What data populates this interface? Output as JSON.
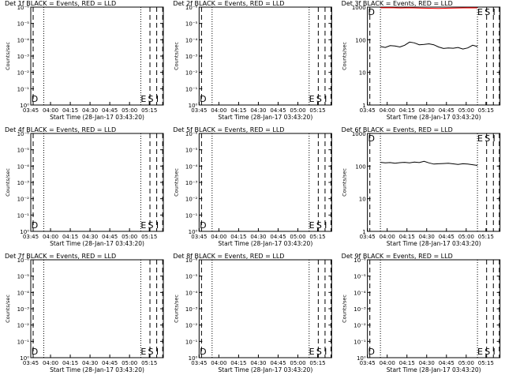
{
  "colors": {
    "events": "#000000",
    "lld": "#ff0000",
    "background": "#ffffff"
  },
  "chart_data": [
    {
      "type": "line",
      "title": "Det 1f BLACK = Events, RED = LLD",
      "xlabel": "Start Time (28-Jan-17 03:43:20)",
      "ylabel": "Counts/sec",
      "xticks": [
        "03:45",
        "04:00",
        "04:15",
        "04:30",
        "04:45",
        "05:00",
        "05:15"
      ],
      "yscale": "log",
      "yticks": [
        "10⁰",
        "10⁻¹",
        "10⁻²",
        "10⁻³",
        "10⁻⁴",
        "10⁻⁵",
        "10⁻⁶"
      ],
      "ylim": [
        1e-06,
        1
      ],
      "markers": [
        "D",
        "E",
        "S",
        "I"
      ],
      "series": []
    },
    {
      "type": "line",
      "title": "Det 2f BLACK = Events, RED = LLD",
      "xlabel": "Start Time (28-Jan-17 03:43:20)",
      "ylabel": "Counts/sec",
      "xticks": [
        "03:45",
        "04:00",
        "04:15",
        "04:30",
        "04:45",
        "05:00",
        "05:15"
      ],
      "yscale": "log",
      "yticks": [
        "10⁰",
        "10⁻¹",
        "10⁻²",
        "10⁻³",
        "10⁻⁴",
        "10⁻⁵",
        "10⁻⁶"
      ],
      "ylim": [
        1e-06,
        1
      ],
      "markers": [
        "D",
        "E",
        "S",
        "I"
      ],
      "series": []
    },
    {
      "type": "line",
      "title": "Det 3f BLACK = Events, RED = LLD",
      "xlabel": "Start Time (28-Jan-17 03:43:20)",
      "ylabel": "Counts/sec",
      "xticks": [
        "03:45",
        "04:00",
        "04:15",
        "04:30",
        "04:45",
        "05:00",
        "05:15"
      ],
      "yscale": "log",
      "yticks": [
        "1",
        "10",
        "100",
        "1000"
      ],
      "ylim": [
        1,
        1000
      ],
      "markers": [
        "D",
        "E",
        "S",
        "I"
      ],
      "series": [
        {
          "color": "red",
          "x": [
            0.0,
            0.1,
            0.2,
            0.3,
            0.4,
            0.5,
            0.6,
            0.7,
            0.8,
            0.9,
            1.0
          ],
          "values": [
            950,
            960,
            940,
            950,
            930,
            920,
            910,
            925,
            940,
            950,
            945
          ]
        },
        {
          "color": "black",
          "x": [
            0.0,
            0.05,
            0.1,
            0.15,
            0.2,
            0.25,
            0.3,
            0.35,
            0.4,
            0.45,
            0.5,
            0.55,
            0.6,
            0.65,
            0.7,
            0.75,
            0.8,
            0.85,
            0.9,
            0.95,
            1.0
          ],
          "values": [
            62,
            58,
            66,
            64,
            60,
            68,
            85,
            80,
            70,
            72,
            75,
            70,
            60,
            54,
            56,
            55,
            58,
            52,
            56,
            68,
            62
          ]
        }
      ]
    },
    {
      "type": "line",
      "title": "Det 4f BLACK = Events, RED = LLD",
      "xlabel": "Start Time (28-Jan-17 03:43:20)",
      "ylabel": "Counts/sec",
      "xticks": [
        "03:45",
        "04:00",
        "04:15",
        "04:30",
        "04:45",
        "05:00",
        "05:15"
      ],
      "yscale": "log",
      "yticks": [
        "10⁰",
        "10⁻¹",
        "10⁻²",
        "10⁻³",
        "10⁻⁴",
        "10⁻⁵",
        "10⁻⁶"
      ],
      "ylim": [
        1e-06,
        1
      ],
      "markers": [
        "D",
        "E",
        "S",
        "I"
      ],
      "series": []
    },
    {
      "type": "line",
      "title": "Det 5f BLACK = Events, RED = LLD",
      "xlabel": "Start Time (28-Jan-17 03:43:20)",
      "ylabel": "Counts/sec",
      "xticks": [
        "03:45",
        "04:00",
        "04:15",
        "04:30",
        "04:45",
        "05:00",
        "05:15"
      ],
      "yscale": "log",
      "yticks": [
        "10⁰",
        "10⁻¹",
        "10⁻²",
        "10⁻³",
        "10⁻⁴",
        "10⁻⁵",
        "10⁻⁶"
      ],
      "ylim": [
        1e-06,
        1
      ],
      "markers": [
        "D",
        "E",
        "S",
        "I"
      ],
      "series": []
    },
    {
      "type": "line",
      "title": "Det 6f BLACK = Events, RED = LLD",
      "xlabel": "Start Time (28-Jan-17 03:43:20)",
      "ylabel": "Counts/sec",
      "xticks": [
        "03:45",
        "04:00",
        "04:15",
        "04:30",
        "04:45",
        "05:00",
        "05:15"
      ],
      "yscale": "log",
      "yticks": [
        "1",
        "10",
        "100",
        "1000"
      ],
      "ylim": [
        1,
        1000
      ],
      "markers": [
        "D",
        "E",
        "S",
        "I"
      ],
      "series": [
        {
          "color": "black",
          "x": [
            0.0,
            0.05,
            0.1,
            0.15,
            0.2,
            0.25,
            0.3,
            0.35,
            0.4,
            0.45,
            0.5,
            0.55,
            0.6,
            0.65,
            0.7,
            0.75,
            0.8,
            0.85,
            0.9,
            0.95,
            1.0
          ],
          "values": [
            130,
            125,
            128,
            122,
            127,
            130,
            126,
            132,
            128,
            140,
            125,
            115,
            118,
            120,
            122,
            117,
            112,
            118,
            115,
            110,
            105
          ]
        }
      ]
    },
    {
      "type": "line",
      "title": "Det 7f BLACK = Events, RED = LLD",
      "xlabel": "Start Time (28-Jan-17 03:43:20)",
      "ylabel": "Counts/sec",
      "xticks": [
        "03:45",
        "04:00",
        "04:15",
        "04:30",
        "04:45",
        "05:00",
        "05:15"
      ],
      "yscale": "log",
      "yticks": [
        "10⁰",
        "10⁻¹",
        "10⁻²",
        "10⁻³",
        "10⁻⁴",
        "10⁻⁵",
        "10⁻⁶"
      ],
      "ylim": [
        1e-06,
        1
      ],
      "markers": [
        "D",
        "E",
        "S",
        "I"
      ],
      "series": []
    },
    {
      "type": "line",
      "title": "Det 8f BLACK = Events, RED = LLD",
      "xlabel": "Start Time (28-Jan-17 03:43:20)",
      "ylabel": "Counts/sec",
      "xticks": [
        "03:45",
        "04:00",
        "04:15",
        "04:30",
        "04:45",
        "05:00",
        "05:15"
      ],
      "yscale": "log",
      "yticks": [
        "10⁰",
        "10⁻¹",
        "10⁻²",
        "10⁻³",
        "10⁻⁴",
        "10⁻⁵",
        "10⁻⁶"
      ],
      "ylim": [
        1e-06,
        1
      ],
      "markers": [
        "D",
        "E",
        "S",
        "I"
      ],
      "series": []
    },
    {
      "type": "line",
      "title": "Det 9f BLACK = Events, RED = LLD",
      "xlabel": "Start Time (28-Jan-17 03:43:20)",
      "ylabel": "Counts/sec",
      "xticks": [
        "03:45",
        "04:00",
        "04:15",
        "04:30",
        "04:45",
        "05:00",
        "05:15"
      ],
      "yscale": "log",
      "yticks": [
        "10⁰",
        "10⁻¹",
        "10⁻²",
        "10⁻³",
        "10⁻⁴",
        "10⁻⁵",
        "10⁻⁶"
      ],
      "ylim": [
        1e-06,
        1
      ],
      "markers": [
        "D",
        "E",
        "S",
        "I"
      ],
      "series": []
    }
  ]
}
